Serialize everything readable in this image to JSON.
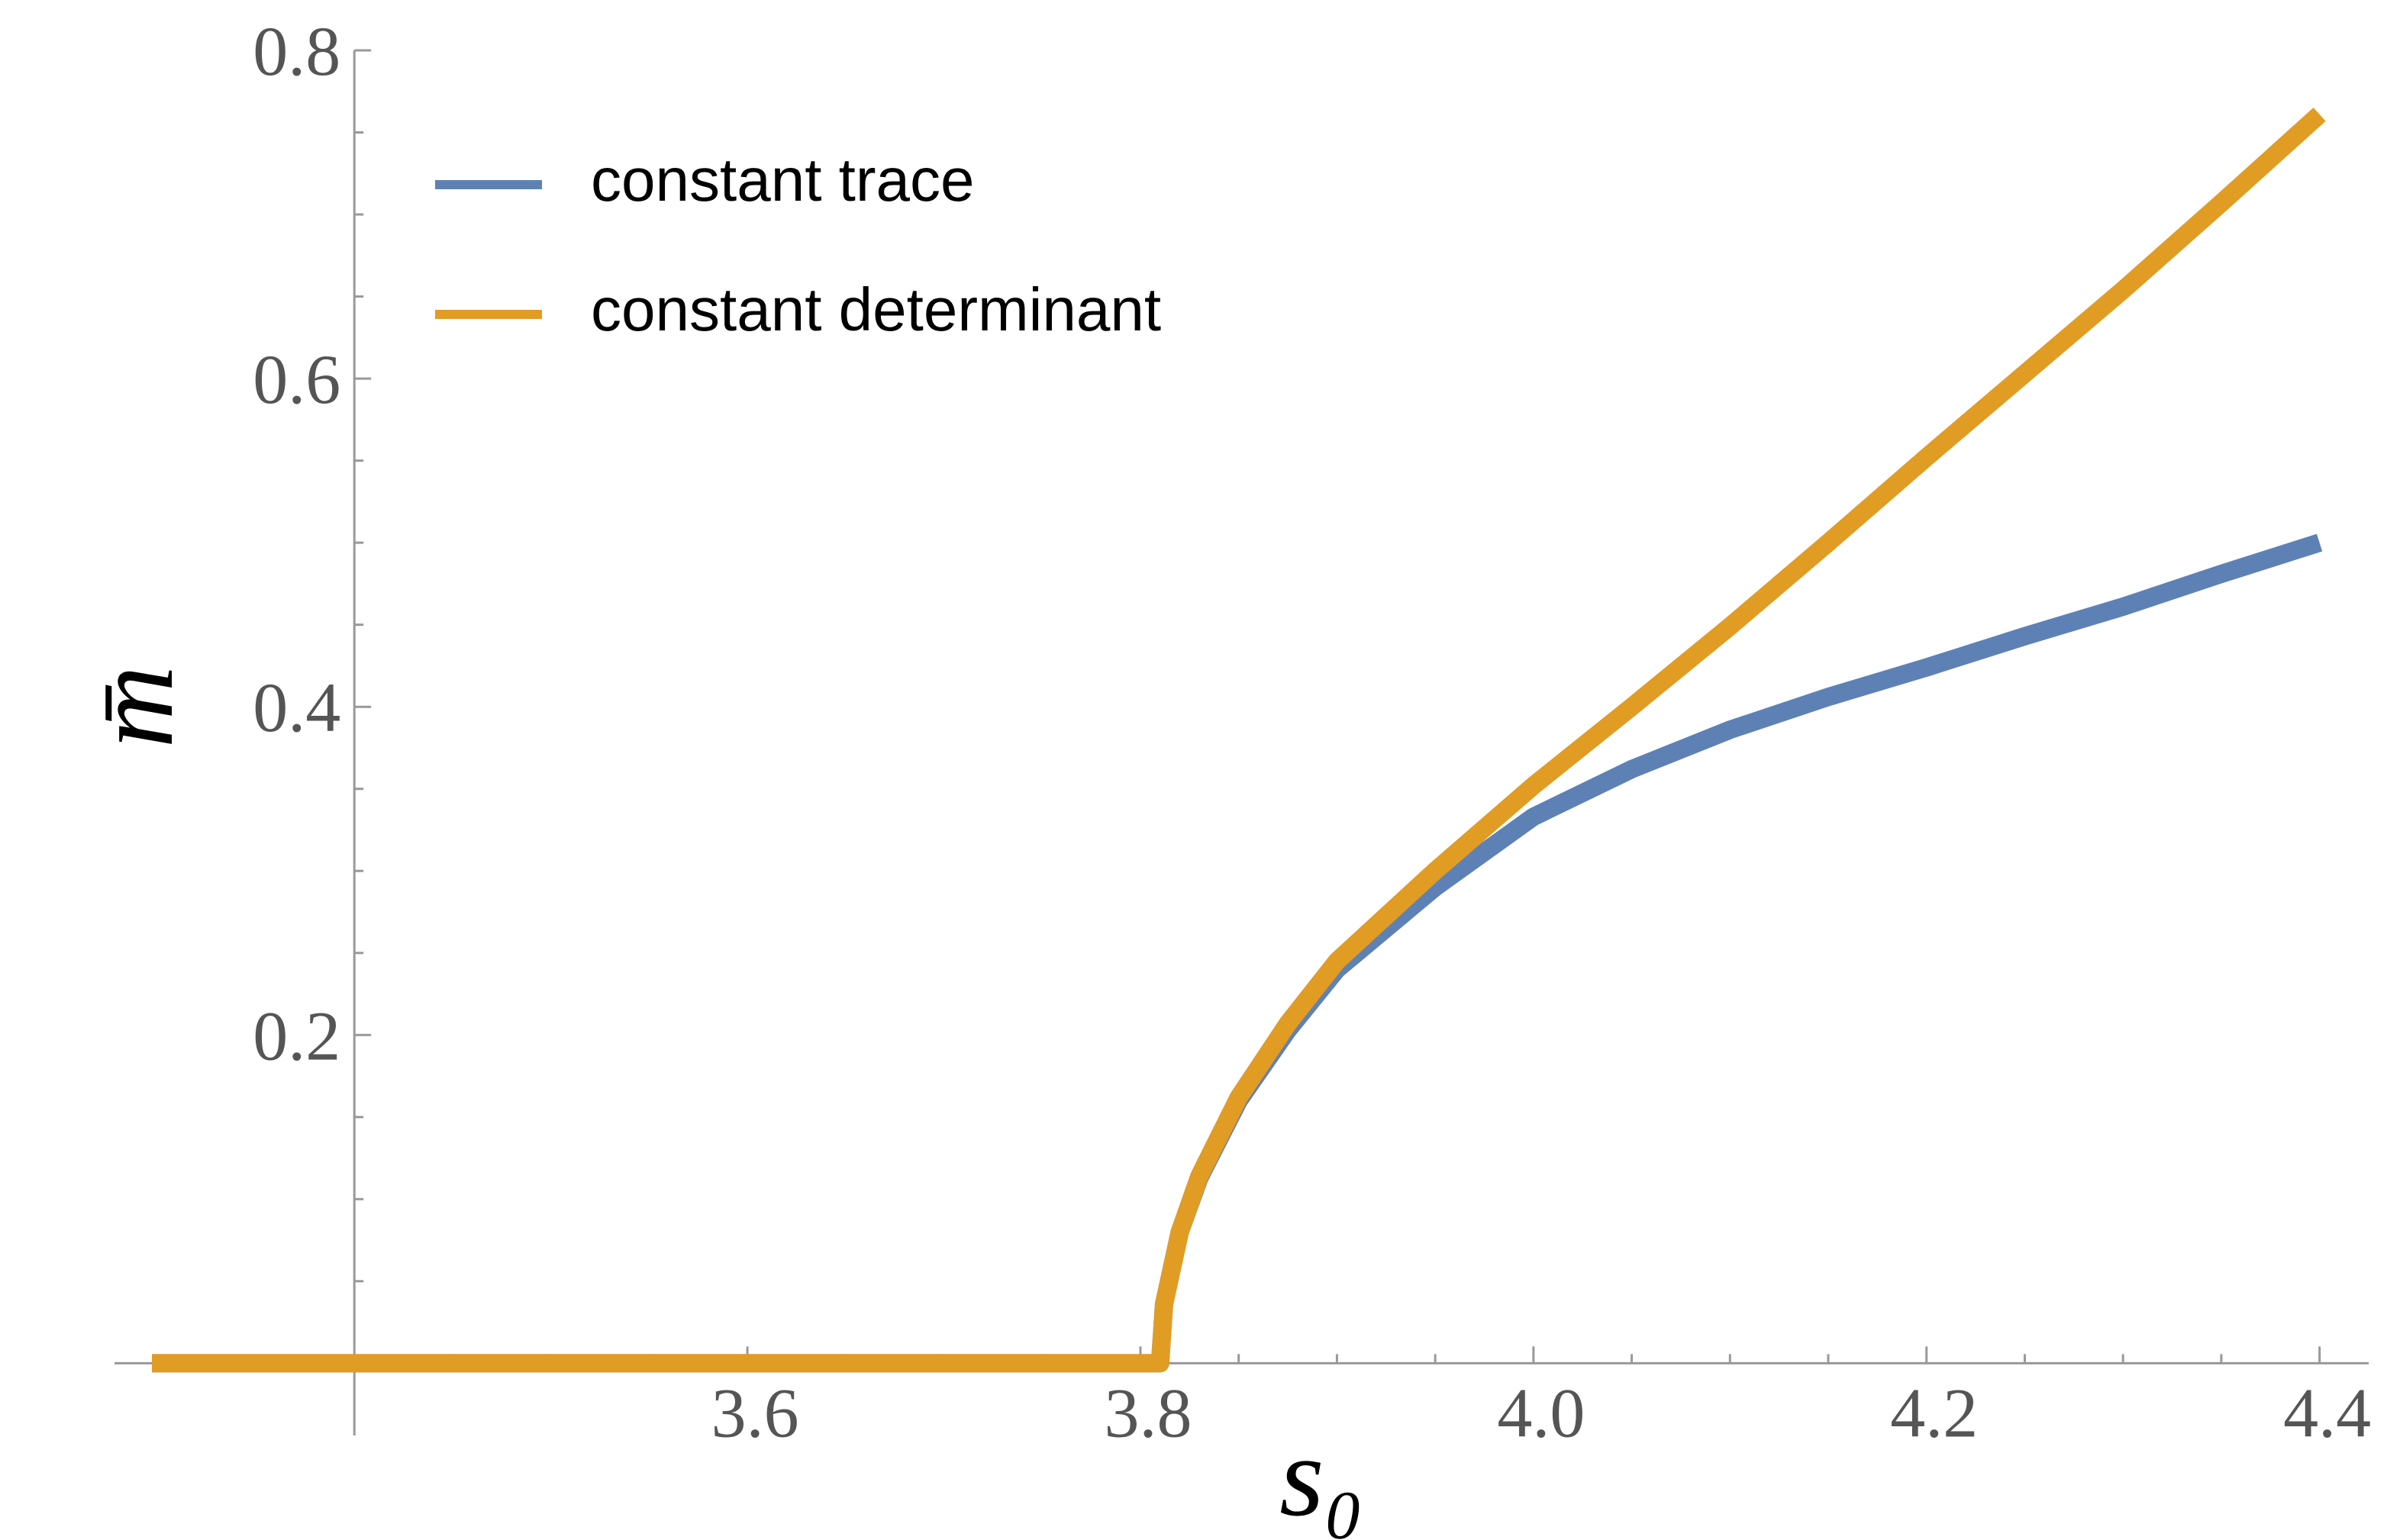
{
  "chart_data": {
    "type": "line",
    "x_label": "s₀",
    "y_label": "m̄",
    "x": [
      3.297,
      3.81,
      3.812,
      3.82,
      3.83,
      3.85,
      3.875,
      3.9,
      3.95,
      4.0,
      4.05,
      4.1,
      4.15,
      4.2,
      4.25,
      4.3,
      4.35,
      4.4
    ],
    "series": [
      {
        "name": "constant trace",
        "color": "#5e81b5",
        "values": [
          0,
          0,
          0.036,
          0.08,
          0.113,
          0.16,
          0.203,
          0.24,
          0.29,
          0.333,
          0.362,
          0.386,
          0.406,
          0.424,
          0.443,
          0.461,
          0.481,
          0.5
        ]
      },
      {
        "name": "constant determinant",
        "color": "#e19c24",
        "values": [
          0,
          0,
          0.036,
          0.08,
          0.114,
          0.162,
          0.207,
          0.245,
          0.3,
          0.352,
          0.4,
          0.449,
          0.5,
          0.552,
          0.603,
          0.654,
          0.707,
          0.761
        ]
      }
    ],
    "xlim": [
      3.29,
      4.425
    ],
    "ylim": [
      -0.044,
      0.8
    ],
    "xticks": [
      3.6,
      3.8,
      {
        "value": 4,
        "label": "4.0"
      },
      4.2,
      4.4
    ],
    "yticks": [
      0.2,
      0.4,
      0.6,
      0.8
    ],
    "xminorticks": [
      3.45,
      3.5,
      3.55,
      3.65,
      3.7,
      3.75,
      3.85,
      3.9,
      3.95,
      4.05,
      4.1,
      4.15,
      4.25,
      4.3,
      4.35
    ],
    "yminorticks": [
      0.05,
      0.1,
      0.15,
      0.25,
      0.3,
      0.35,
      0.45,
      0.5,
      0.55,
      0.65,
      0.7,
      0.75
    ],
    "axes_origin": [
      3.4,
      0
    ],
    "legend": "upper left"
  }
}
